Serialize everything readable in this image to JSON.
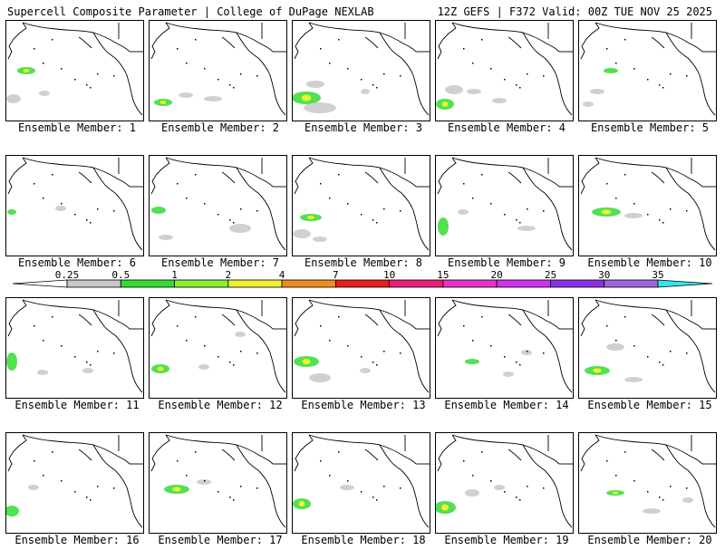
{
  "header": {
    "title_left": "Supercell Composite Parameter | College of DuPage NEXLAB",
    "title_right": "12Z GEFS | F372 Valid: 00Z TUE NOV 25 2025"
  },
  "members": [
    {
      "label": "Ensemble Member: 1"
    },
    {
      "label": "Ensemble Member: 2"
    },
    {
      "label": "Ensemble Member: 3"
    },
    {
      "label": "Ensemble Member: 4"
    },
    {
      "label": "Ensemble Member: 5"
    },
    {
      "label": "Ensemble Member: 6"
    },
    {
      "label": "Ensemble Member: 7"
    },
    {
      "label": "Ensemble Member: 8"
    },
    {
      "label": "Ensemble Member: 9"
    },
    {
      "label": "Ensemble Member: 10"
    },
    {
      "label": "Ensemble Member: 11"
    },
    {
      "label": "Ensemble Member: 12"
    },
    {
      "label": "Ensemble Member: 13"
    },
    {
      "label": "Ensemble Member: 14"
    },
    {
      "label": "Ensemble Member: 15"
    },
    {
      "label": "Ensemble Member: 16"
    },
    {
      "label": "Ensemble Member: 17"
    },
    {
      "label": "Ensemble Member: 18"
    },
    {
      "label": "Ensemble Member: 19"
    },
    {
      "label": "Ensemble Member: 20"
    }
  ],
  "colorbar": {
    "ticks": [
      "0.25",
      "0.5",
      "1",
      "2",
      "4",
      "7",
      "10",
      "15",
      "20",
      "25",
      "30",
      "35"
    ],
    "colors": [
      "#ffffff",
      "#c8c8c8",
      "#32dc32",
      "#8cf032",
      "#f0f032",
      "#f08c1e",
      "#e61e1e",
      "#e61e78",
      "#e632c8",
      "#d232f0",
      "#8c32e6",
      "#a064dc",
      "#32e6f0"
    ]
  }
}
